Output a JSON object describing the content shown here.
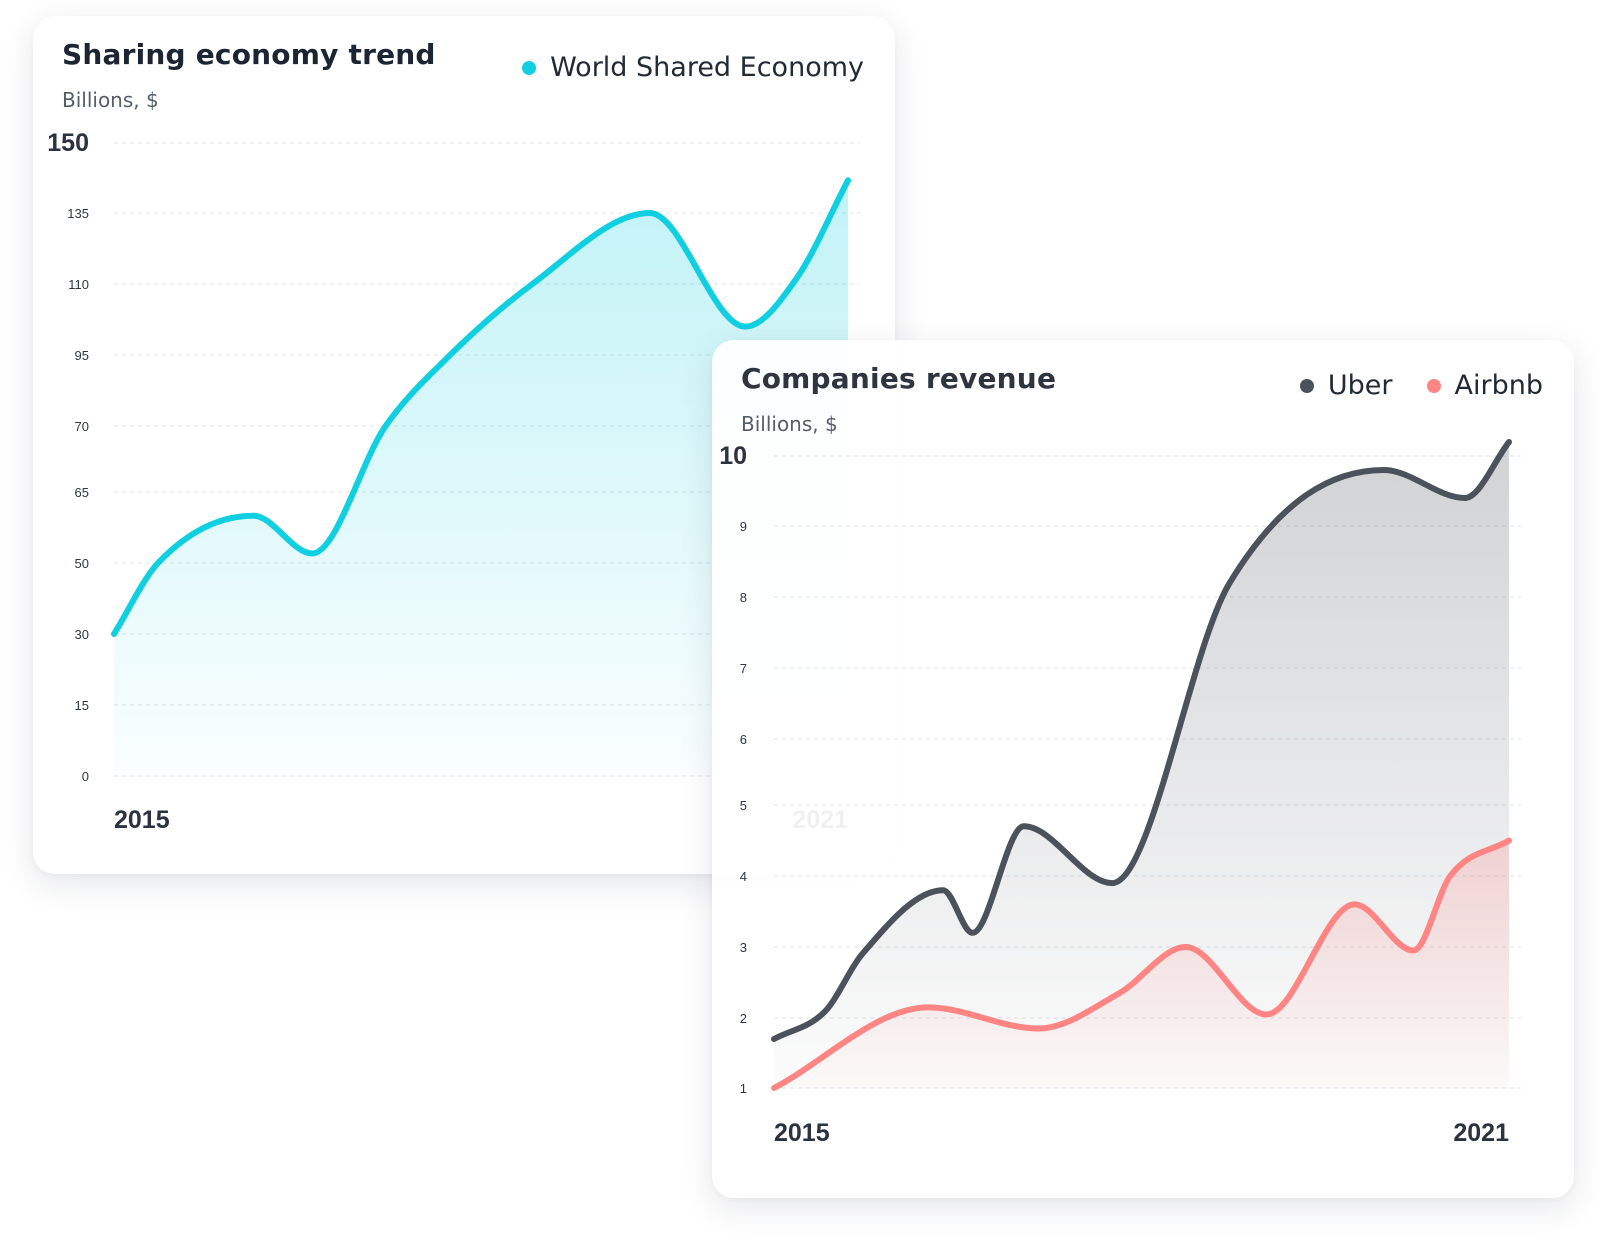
{
  "charts": [
    {
      "title": "Sharing economy trend",
      "subtitle": "Billions, $",
      "legend": [
        "World Shared Economy"
      ]
    },
    {
      "title": "Companies revenue",
      "subtitle": "Billions, $",
      "legend": [
        "Uber",
        "Airbnb"
      ]
    }
  ],
  "chart_data": [
    {
      "type": "area",
      "title": "Sharing economy trend",
      "ylabel": "Billions, $",
      "y_ticks": [
        "150",
        "135",
        "110",
        "95",
        "70",
        "65",
        "50",
        "30",
        "15",
        "0"
      ],
      "x_tick_labels": [
        "2015",
        "2021"
      ],
      "x_range": [
        0,
        1
      ],
      "legend_position": "top-right",
      "grid": true,
      "series": [
        {
          "name": "World Shared Economy",
          "color": "#10cfe0",
          "points": [
            [
              0.0,
              30
            ],
            [
              0.06,
              50
            ],
            [
              0.19,
              60
            ],
            [
              0.27,
              52
            ],
            [
              0.37,
              70
            ],
            [
              0.45,
              93
            ],
            [
              0.57,
              110
            ],
            [
              0.73,
              135
            ],
            [
              0.86,
              101
            ],
            [
              0.93,
              112
            ],
            [
              1.0,
              142
            ]
          ]
        }
      ]
    },
    {
      "type": "area",
      "title": "Companies revenue",
      "ylabel": "Billions, $",
      "y_ticks": [
        "10",
        "9",
        "8",
        "7",
        "6",
        "5",
        "4",
        "3",
        "2",
        "1"
      ],
      "x_tick_labels": [
        "2015",
        "2021"
      ],
      "x_range": [
        0,
        1
      ],
      "legend_position": "top-right",
      "grid": true,
      "series": [
        {
          "name": "Uber",
          "color": "#4c525b",
          "points": [
            [
              0.0,
              1.7
            ],
            [
              0.07,
              2.1
            ],
            [
              0.12,
              2.9
            ],
            [
              0.23,
              3.8
            ],
            [
              0.27,
              3.2
            ],
            [
              0.34,
              4.7
            ],
            [
              0.46,
              3.9
            ],
            [
              0.62,
              8.2
            ],
            [
              0.83,
              9.8
            ],
            [
              0.94,
              9.4
            ],
            [
              1.0,
              10.2
            ]
          ]
        },
        {
          "name": "Airbnb",
          "color": "#ff8585",
          "points": [
            [
              0.0,
              1.0
            ],
            [
              0.21,
              2.15
            ],
            [
              0.36,
              1.85
            ],
            [
              0.47,
              2.35
            ],
            [
              0.56,
              3.0
            ],
            [
              0.67,
              2.05
            ],
            [
              0.79,
              3.6
            ],
            [
              0.87,
              2.95
            ],
            [
              0.92,
              4.0
            ],
            [
              1.0,
              4.5
            ]
          ]
        }
      ]
    }
  ]
}
